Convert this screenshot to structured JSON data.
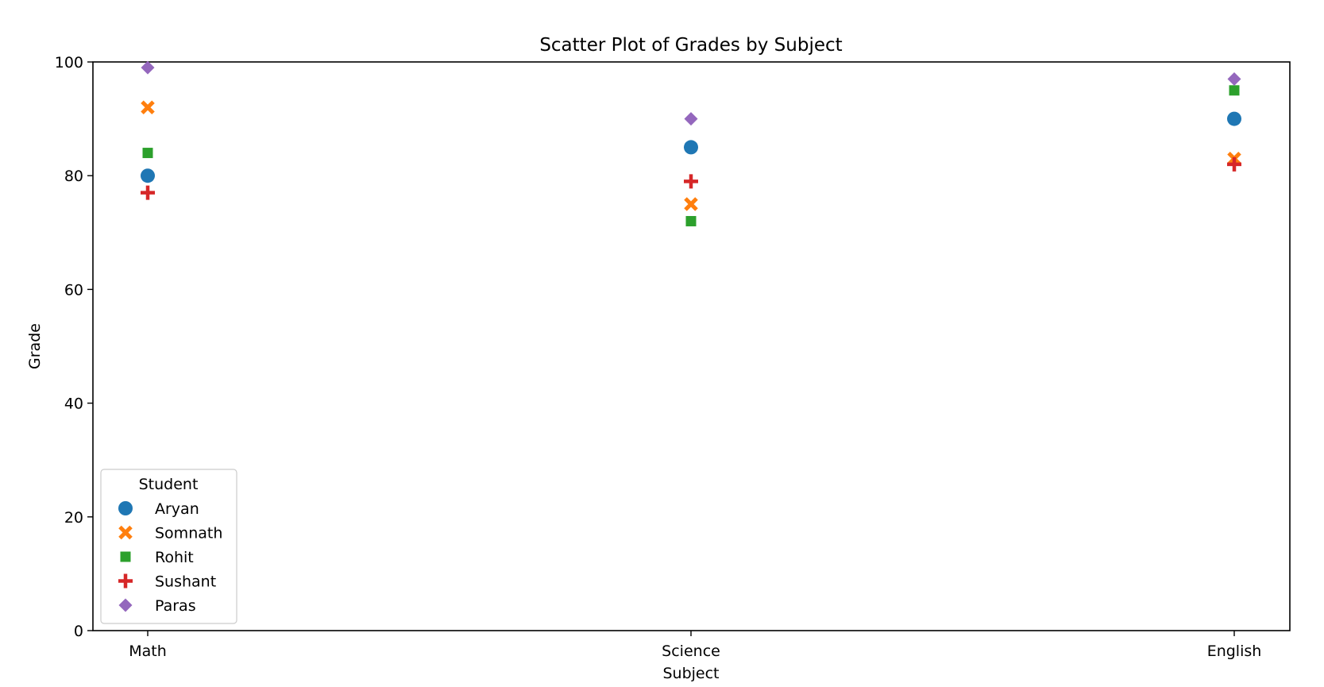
{
  "chart_data": {
    "type": "scatter",
    "title": "Scatter Plot of Grades by Subject",
    "xlabel": "Subject",
    "ylabel": "Grade",
    "categories": [
      "Math",
      "Science",
      "English"
    ],
    "ylim": [
      0,
      100
    ],
    "yticks": [
      0,
      20,
      40,
      60,
      80,
      100
    ],
    "grid": false,
    "legend": {
      "title": "Student",
      "placement": "lower-left"
    },
    "series": [
      {
        "name": "Aryan",
        "marker": "circle",
        "color": "#1f77b4",
        "values": [
          80,
          85,
          90
        ]
      },
      {
        "name": "Somnath",
        "marker": "x",
        "color": "#ff7f0e",
        "values": [
          92,
          75,
          83
        ]
      },
      {
        "name": "Rohit",
        "marker": "square",
        "color": "#2ca02c",
        "values": [
          84,
          72,
          95
        ]
      },
      {
        "name": "Sushant",
        "marker": "plus",
        "color": "#d62728",
        "values": [
          77,
          79,
          82
        ]
      },
      {
        "name": "Paras",
        "marker": "diamond",
        "color": "#9467bd",
        "values": [
          99,
          90,
          97
        ]
      }
    ]
  }
}
